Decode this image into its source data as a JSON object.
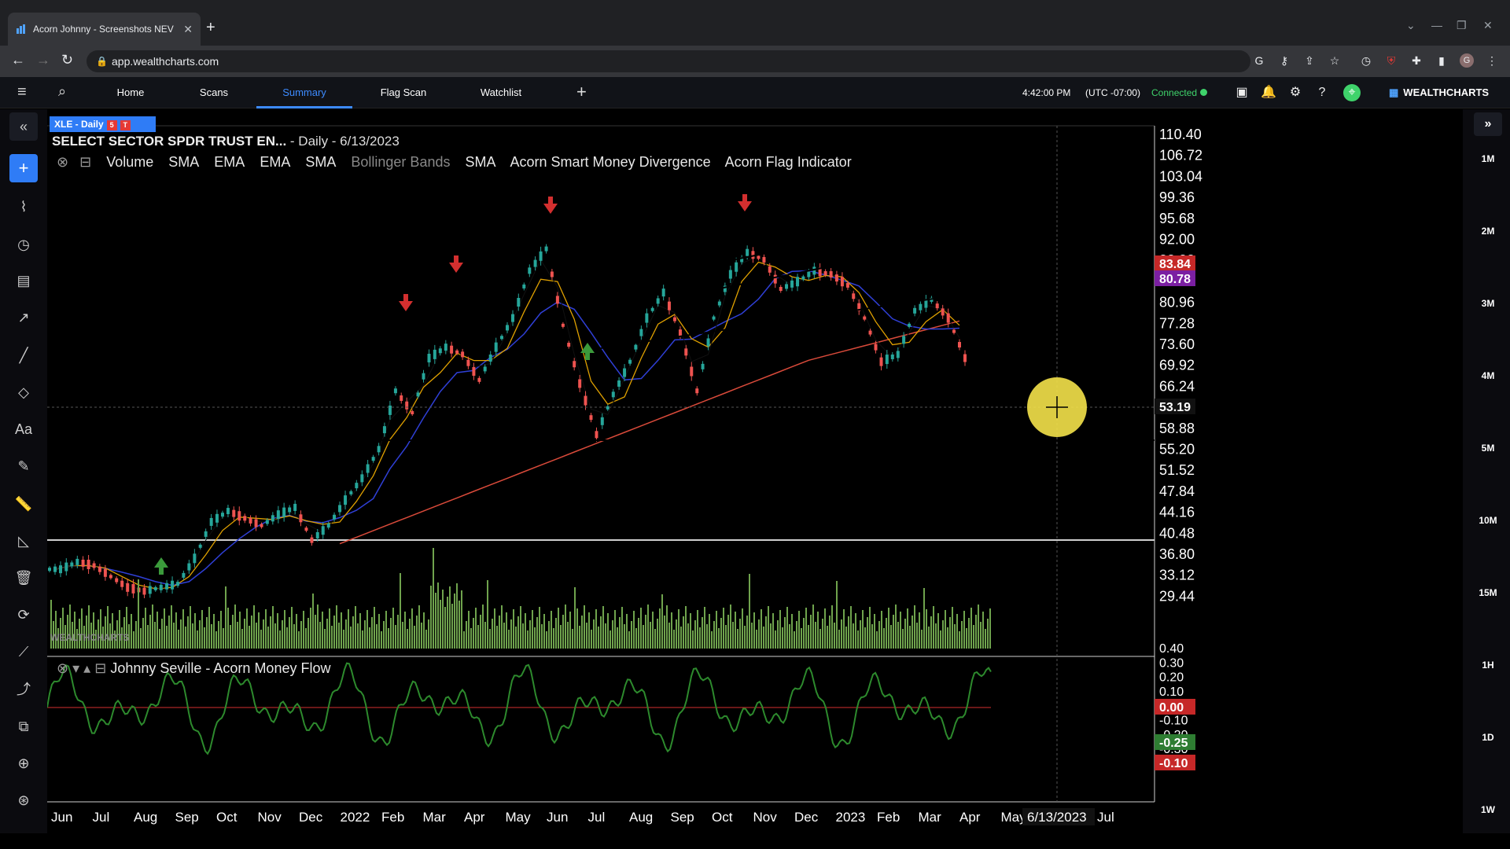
{
  "browser": {
    "tab_title": "Acorn Johnny - Screenshots NEV",
    "url": "app.wealthcharts.com"
  },
  "header": {
    "nav": [
      "Home",
      "Scans",
      "Summary",
      "Flag Scan",
      "Watchlist"
    ],
    "active_nav": "Summary",
    "time": "4:42:00 PM",
    "timezone": "(UTC -07:00)",
    "status": "Connected",
    "brand": "WEALTHCHARTS"
  },
  "chart": {
    "symbol_tag": "XLE - Daily",
    "tag_badges": [
      "5",
      "T"
    ],
    "title": "SELECT SECTOR SPDR TRUST EN...",
    "subtitle": "- Daily - 6/13/2023",
    "indicators": [
      "Volume",
      "SMA",
      "EMA",
      "EMA",
      "SMA",
      "Bollinger Bands",
      "SMA",
      "Acorn Smart Money Divergence",
      "Acorn Flag Indicator"
    ],
    "dim_indicator": "Bollinger Bands",
    "lower_indicator": "Johnny Seville - Acorn Money Flow",
    "watermark": "WEALTHCHARTS",
    "crosshair_date": "6/13/2023",
    "crosshair_price": "53.19",
    "colors": {
      "up": "#26a69a",
      "down": "#ef5350",
      "ema_fast": "#e0a100",
      "sma_mid": "#2f3fd6",
      "sma_long": "#d94a3a",
      "volume": "#6fa34d",
      "money_flow": "#2d8a2d",
      "zero_line": "#d32f2f"
    }
  },
  "price_axis": [
    "110.40",
    "106.72",
    "103.04",
    "99.36",
    "95.68",
    "92.00",
    "88.32",
    "84.64",
    "80.96",
    "77.28",
    "73.60",
    "69.92",
    "66.24",
    "62.56",
    "58.88",
    "55.20",
    "51.52",
    "47.84",
    "44.16",
    "40.48",
    "36.80",
    "33.12",
    "29.44"
  ],
  "price_badges": {
    "close": "83.84",
    "sma": "80.78"
  },
  "osc_axis": [
    "0.40",
    "0.30",
    "0.20",
    "0.10",
    "0.00",
    "-0.10",
    "-0.20",
    "-0.30"
  ],
  "osc_badges": {
    "zero": "0.00",
    "value": "-0.25",
    "signal": "-0.10"
  },
  "time_axis": [
    "Jun",
    "Jul",
    "Aug",
    "Sep",
    "Oct",
    "Nov",
    "Dec",
    "2022",
    "Feb",
    "Mar",
    "Apr",
    "May",
    "Jun",
    "Jul",
    "Aug",
    "Sep",
    "Oct",
    "Nov",
    "Dec",
    "2023",
    "Feb",
    "Mar",
    "Apr",
    "May",
    "Jul"
  ],
  "timeframes": [
    "1M",
    "2M",
    "3M",
    "4M",
    "5M",
    "10M",
    "15M",
    "1H",
    "1D",
    "1W"
  ],
  "chart_data": {
    "type": "line",
    "title": "SELECT SECTOR SPDR TRUST EN...",
    "series": [
      {
        "name": "XLE",
        "values": [
          49.5,
          50.5,
          50.0,
          48.5,
          47.0,
          46.5,
          47.0,
          47.5,
          51.0,
          56.0,
          57.5,
          56.5,
          55.5,
          57.0,
          58.0,
          53.5,
          55.5,
          59.0,
          62.0,
          66.0,
          74.0,
          71.0,
          78.5,
          80.0,
          79.0,
          75.5,
          80.0,
          84.0,
          90.5,
          93.5,
          83.0,
          75.0,
          68.0,
          73.5,
          78.0,
          84.0,
          87.5,
          82.0,
          74.0,
          84.0,
          90.0,
          93.0,
          92.0,
          88.0,
          89.0,
          90.5,
          90.0,
          88.5,
          84.0,
          78.0,
          79.0,
          85.0,
          86.5,
          84.0,
          78.5
        ]
      }
    ]
  }
}
